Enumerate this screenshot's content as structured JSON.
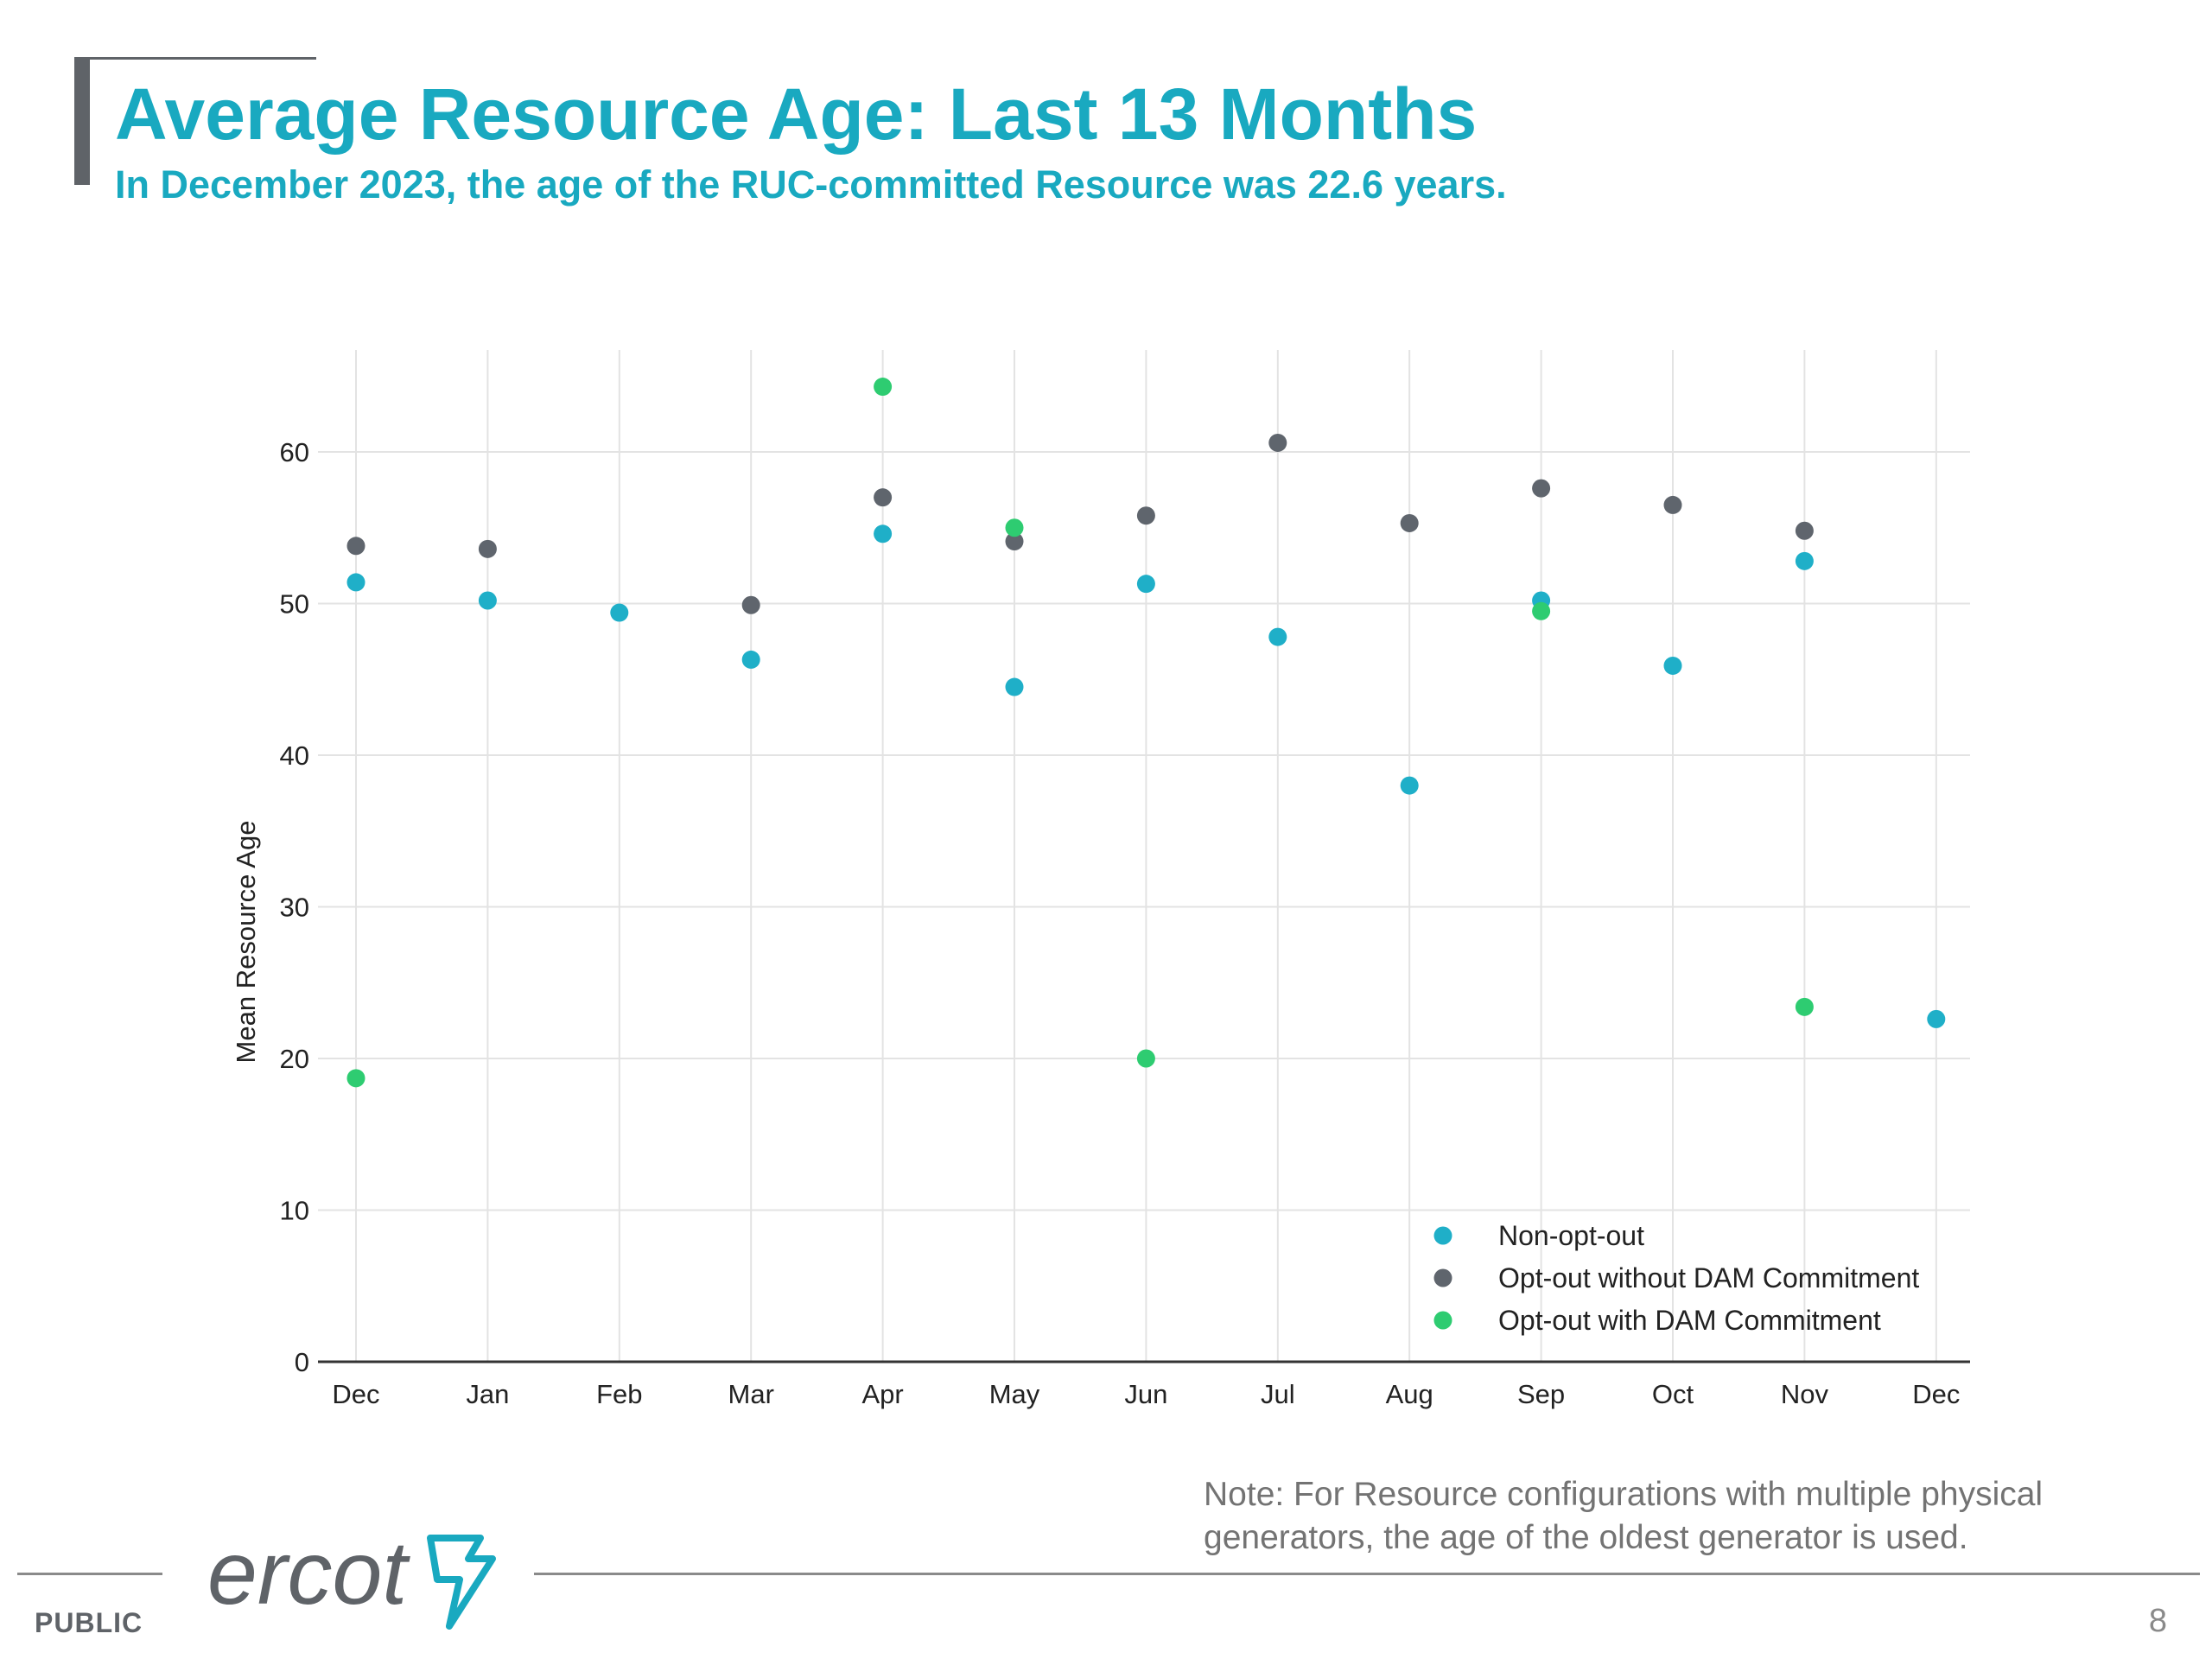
{
  "header": {
    "title": "Average Resource Age: Last 13 Months",
    "subtitle": "In December 2023, the age of the RUC-committed Resource was 22.6 years."
  },
  "chart_data": {
    "type": "scatter",
    "categories": [
      "Dec",
      "Jan",
      "Feb",
      "Mar",
      "Apr",
      "May",
      "Jun",
      "Jul",
      "Aug",
      "Sep",
      "Oct",
      "Nov",
      "Dec"
    ],
    "ylabel": "Mean Resource Age",
    "xlabel": "",
    "ylim": [
      0,
      66
    ],
    "yticks": [
      0,
      10,
      20,
      30,
      40,
      50,
      60
    ],
    "grid": true,
    "legend_position": "bottom-right",
    "series": [
      {
        "name": "Non-opt-out",
        "color": "#1fafc8",
        "values": [
          51.4,
          50.2,
          49.4,
          46.3,
          54.6,
          44.5,
          51.3,
          47.8,
          38.0,
          50.2,
          45.9,
          52.8,
          22.6
        ]
      },
      {
        "name": "Opt-out without DAM Commitment",
        "color": "#5f656d",
        "values": [
          53.8,
          53.6,
          null,
          49.9,
          57.0,
          54.1,
          55.8,
          60.6,
          55.3,
          57.6,
          56.5,
          54.8,
          null
        ]
      },
      {
        "name": "Opt-out with DAM Commitment",
        "color": "#2ecc71",
        "values": [
          18.7,
          null,
          null,
          null,
          64.3,
          55.0,
          20.0,
          null,
          null,
          49.5,
          null,
          23.4,
          null
        ]
      }
    ]
  },
  "note": "Note: For Resource configurations with multiple physical generators, the age of the oldest generator is used.",
  "footer": {
    "logo_text": "ercot",
    "classification": "PUBLIC",
    "page_number": "8"
  }
}
